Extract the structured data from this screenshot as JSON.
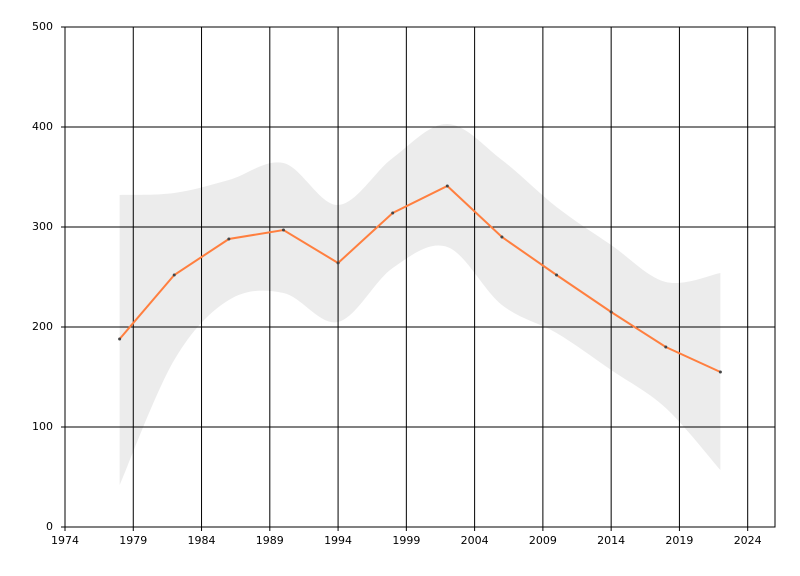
{
  "chart_data": {
    "type": "line",
    "x": [
      1978,
      1982,
      1986,
      1990,
      1994,
      1998,
      2002,
      2006,
      2010,
      2014,
      2018,
      2022
    ],
    "series": [
      {
        "color": "#ff7f3f",
        "values": [
          188,
          252,
          288,
          297,
          264,
          314,
          341,
          290,
          252,
          215,
          180,
          155
        ]
      }
    ],
    "band": {
      "color": "#ececec",
      "upper": [
        332,
        334,
        347,
        364,
        322,
        369,
        403,
        367,
        320,
        282,
        245,
        254
      ],
      "lower": [
        42,
        167,
        227,
        234,
        205,
        259,
        280,
        222,
        194,
        157,
        119,
        57
      ]
    },
    "xlim": [
      1974,
      2026
    ],
    "xticks": [
      1974,
      1979,
      1984,
      1989,
      1994,
      1999,
      2004,
      2009,
      2014,
      2019,
      2024
    ],
    "ylim": [
      0,
      500
    ],
    "yticks": [
      0,
      100,
      200,
      300,
      400,
      500
    ],
    "grid": true
  }
}
